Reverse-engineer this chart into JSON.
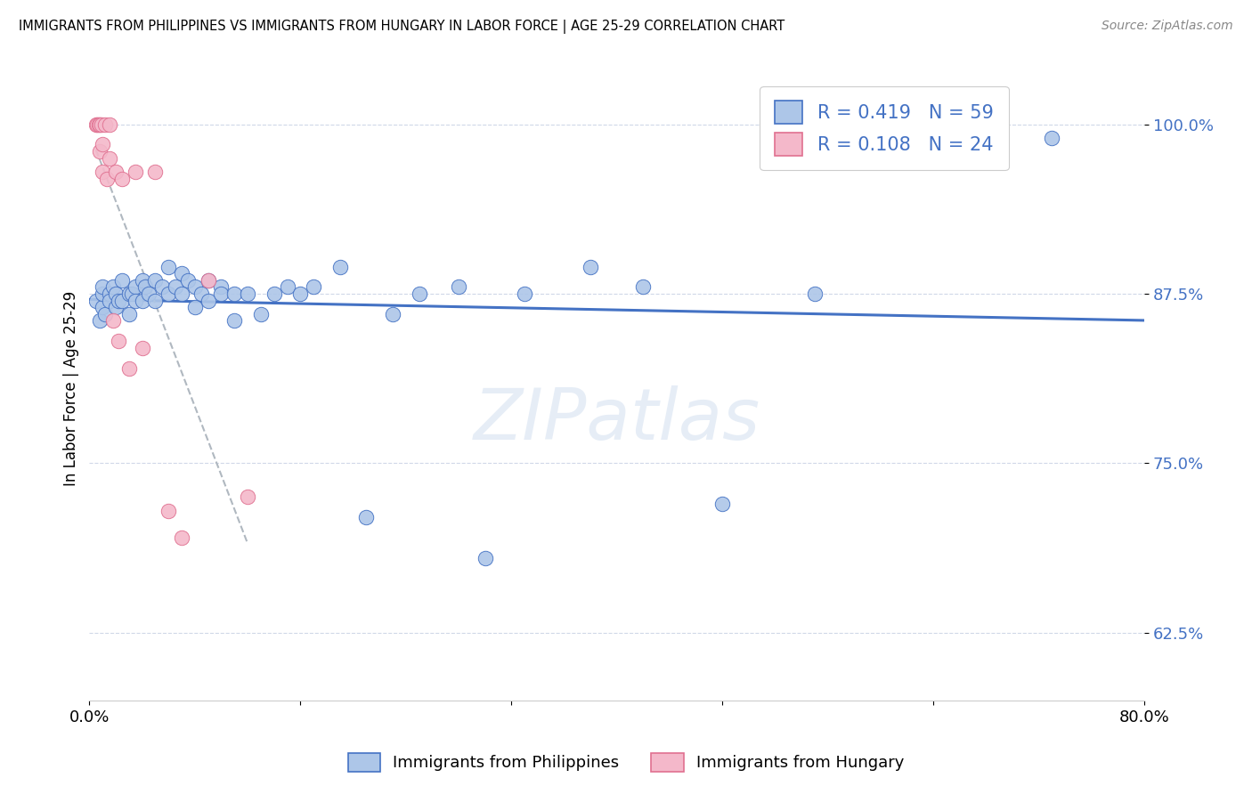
{
  "title": "IMMIGRANTS FROM PHILIPPINES VS IMMIGRANTS FROM HUNGARY IN LABOR FORCE | AGE 25-29 CORRELATION CHART",
  "source": "Source: ZipAtlas.com",
  "ylabel": "In Labor Force | Age 25-29",
  "r_philippines": 0.419,
  "n_philippines": 59,
  "r_hungary": 0.108,
  "n_hungary": 24,
  "color_philippines": "#adc6e8",
  "color_hungary": "#f4b8ca",
  "trend_color_philippines": "#4472c4",
  "trend_color_hungary": "#b0b8c0",
  "legend_text_color": "#4472c4",
  "xlim": [
    0.0,
    0.8
  ],
  "ylim": [
    0.575,
    1.035
  ],
  "yticks": [
    0.625,
    0.75,
    0.875,
    1.0
  ],
  "ytick_labels": [
    "62.5%",
    "75.0%",
    "87.5%",
    "100.0%"
  ],
  "xticks": [
    0.0,
    0.16,
    0.32,
    0.48,
    0.64,
    0.8
  ],
  "xtick_labels": [
    "0.0%",
    "",
    "",
    "",
    "",
    "80.0%"
  ],
  "philippines_x": [
    0.005,
    0.008,
    0.01,
    0.01,
    0.01,
    0.012,
    0.015,
    0.015,
    0.018,
    0.02,
    0.02,
    0.022,
    0.025,
    0.025,
    0.03,
    0.03,
    0.032,
    0.035,
    0.035,
    0.04,
    0.04,
    0.042,
    0.045,
    0.05,
    0.05,
    0.055,
    0.06,
    0.06,
    0.065,
    0.07,
    0.07,
    0.075,
    0.08,
    0.08,
    0.085,
    0.09,
    0.09,
    0.1,
    0.1,
    0.11,
    0.11,
    0.12,
    0.13,
    0.14,
    0.15,
    0.16,
    0.17,
    0.19,
    0.21,
    0.23,
    0.25,
    0.28,
    0.3,
    0.33,
    0.38,
    0.42,
    0.48,
    0.55,
    0.73
  ],
  "philippines_y": [
    0.87,
    0.855,
    0.865,
    0.875,
    0.88,
    0.86,
    0.875,
    0.87,
    0.88,
    0.865,
    0.875,
    0.87,
    0.885,
    0.87,
    0.875,
    0.86,
    0.875,
    0.88,
    0.87,
    0.885,
    0.87,
    0.88,
    0.875,
    0.885,
    0.87,
    0.88,
    0.895,
    0.875,
    0.88,
    0.89,
    0.875,
    0.885,
    0.88,
    0.865,
    0.875,
    0.885,
    0.87,
    0.88,
    0.875,
    0.875,
    0.855,
    0.875,
    0.86,
    0.875,
    0.88,
    0.875,
    0.88,
    0.895,
    0.71,
    0.86,
    0.875,
    0.88,
    0.68,
    0.875,
    0.895,
    0.88,
    0.72,
    0.875,
    0.99
  ],
  "hungary_x": [
    0.005,
    0.006,
    0.007,
    0.008,
    0.008,
    0.009,
    0.01,
    0.01,
    0.012,
    0.013,
    0.015,
    0.015,
    0.018,
    0.02,
    0.022,
    0.025,
    0.03,
    0.035,
    0.04,
    0.05,
    0.06,
    0.07,
    0.09,
    0.12
  ],
  "hungary_y": [
    1.0,
    1.0,
    1.0,
    1.0,
    0.98,
    1.0,
    0.985,
    0.965,
    1.0,
    0.96,
    0.975,
    1.0,
    0.855,
    0.965,
    0.84,
    0.96,
    0.82,
    0.965,
    0.835,
    0.965,
    0.715,
    0.695,
    0.885,
    0.725
  ]
}
